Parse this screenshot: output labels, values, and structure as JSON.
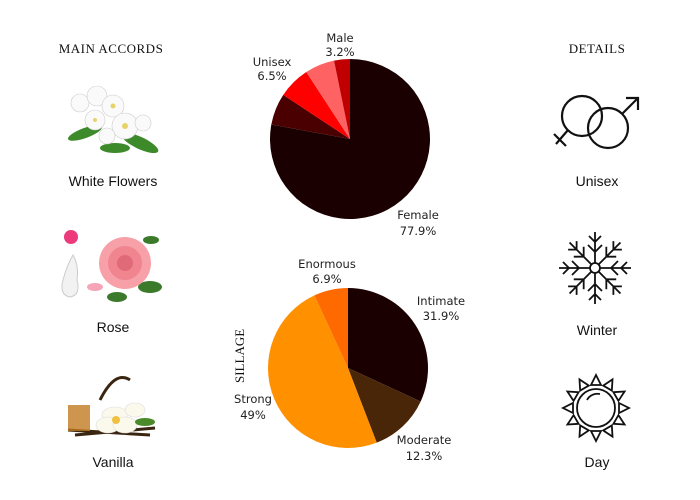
{
  "left": {
    "heading": "MAIN ACCORDS",
    "accords": [
      {
        "label": "White Flowers",
        "icon": "white-flowers-image"
      },
      {
        "label": "Rose",
        "icon": "rose-image"
      },
      {
        "label": "Vanilla",
        "icon": "vanilla-image"
      }
    ]
  },
  "right": {
    "heading": "DETAILS",
    "details": [
      {
        "label": "Unisex",
        "icon": "gender-symbols-icon"
      },
      {
        "label": "Winter",
        "icon": "snowflake-icon"
      },
      {
        "label": "Day",
        "icon": "sun-icon"
      }
    ]
  },
  "chart_data": [
    {
      "type": "pie",
      "title": "",
      "slices": [
        {
          "label": "Female",
          "value": 77.9,
          "value_label": "77.9%",
          "color": "#1a0000"
        },
        {
          "label": "",
          "value": 6.4,
          "value_label": "",
          "color": "#4a0000"
        },
        {
          "label": "Unisex",
          "value": 6.5,
          "value_label": "6.5%",
          "color": "#ff0000"
        },
        {
          "label": "",
          "value": 6.0,
          "value_label": "",
          "color": "#ff6262"
        },
        {
          "label": "Male",
          "value": 3.2,
          "value_label": "3.2%",
          "color": "#c00000"
        }
      ]
    },
    {
      "type": "pie",
      "title": "SILLAGE",
      "slices": [
        {
          "label": "Intimate",
          "value": 31.9,
          "value_label": "31.9%",
          "color": "#1a0000"
        },
        {
          "label": "Moderate",
          "value": 12.3,
          "value_label": "12.3%",
          "color": "#4a2608"
        },
        {
          "label": "Strong",
          "value": 49,
          "value_label": "49%",
          "color": "#ff9000"
        },
        {
          "label": "Enormous",
          "value": 6.9,
          "value_label": "6.9%",
          "color": "#ff6a00"
        }
      ]
    }
  ]
}
